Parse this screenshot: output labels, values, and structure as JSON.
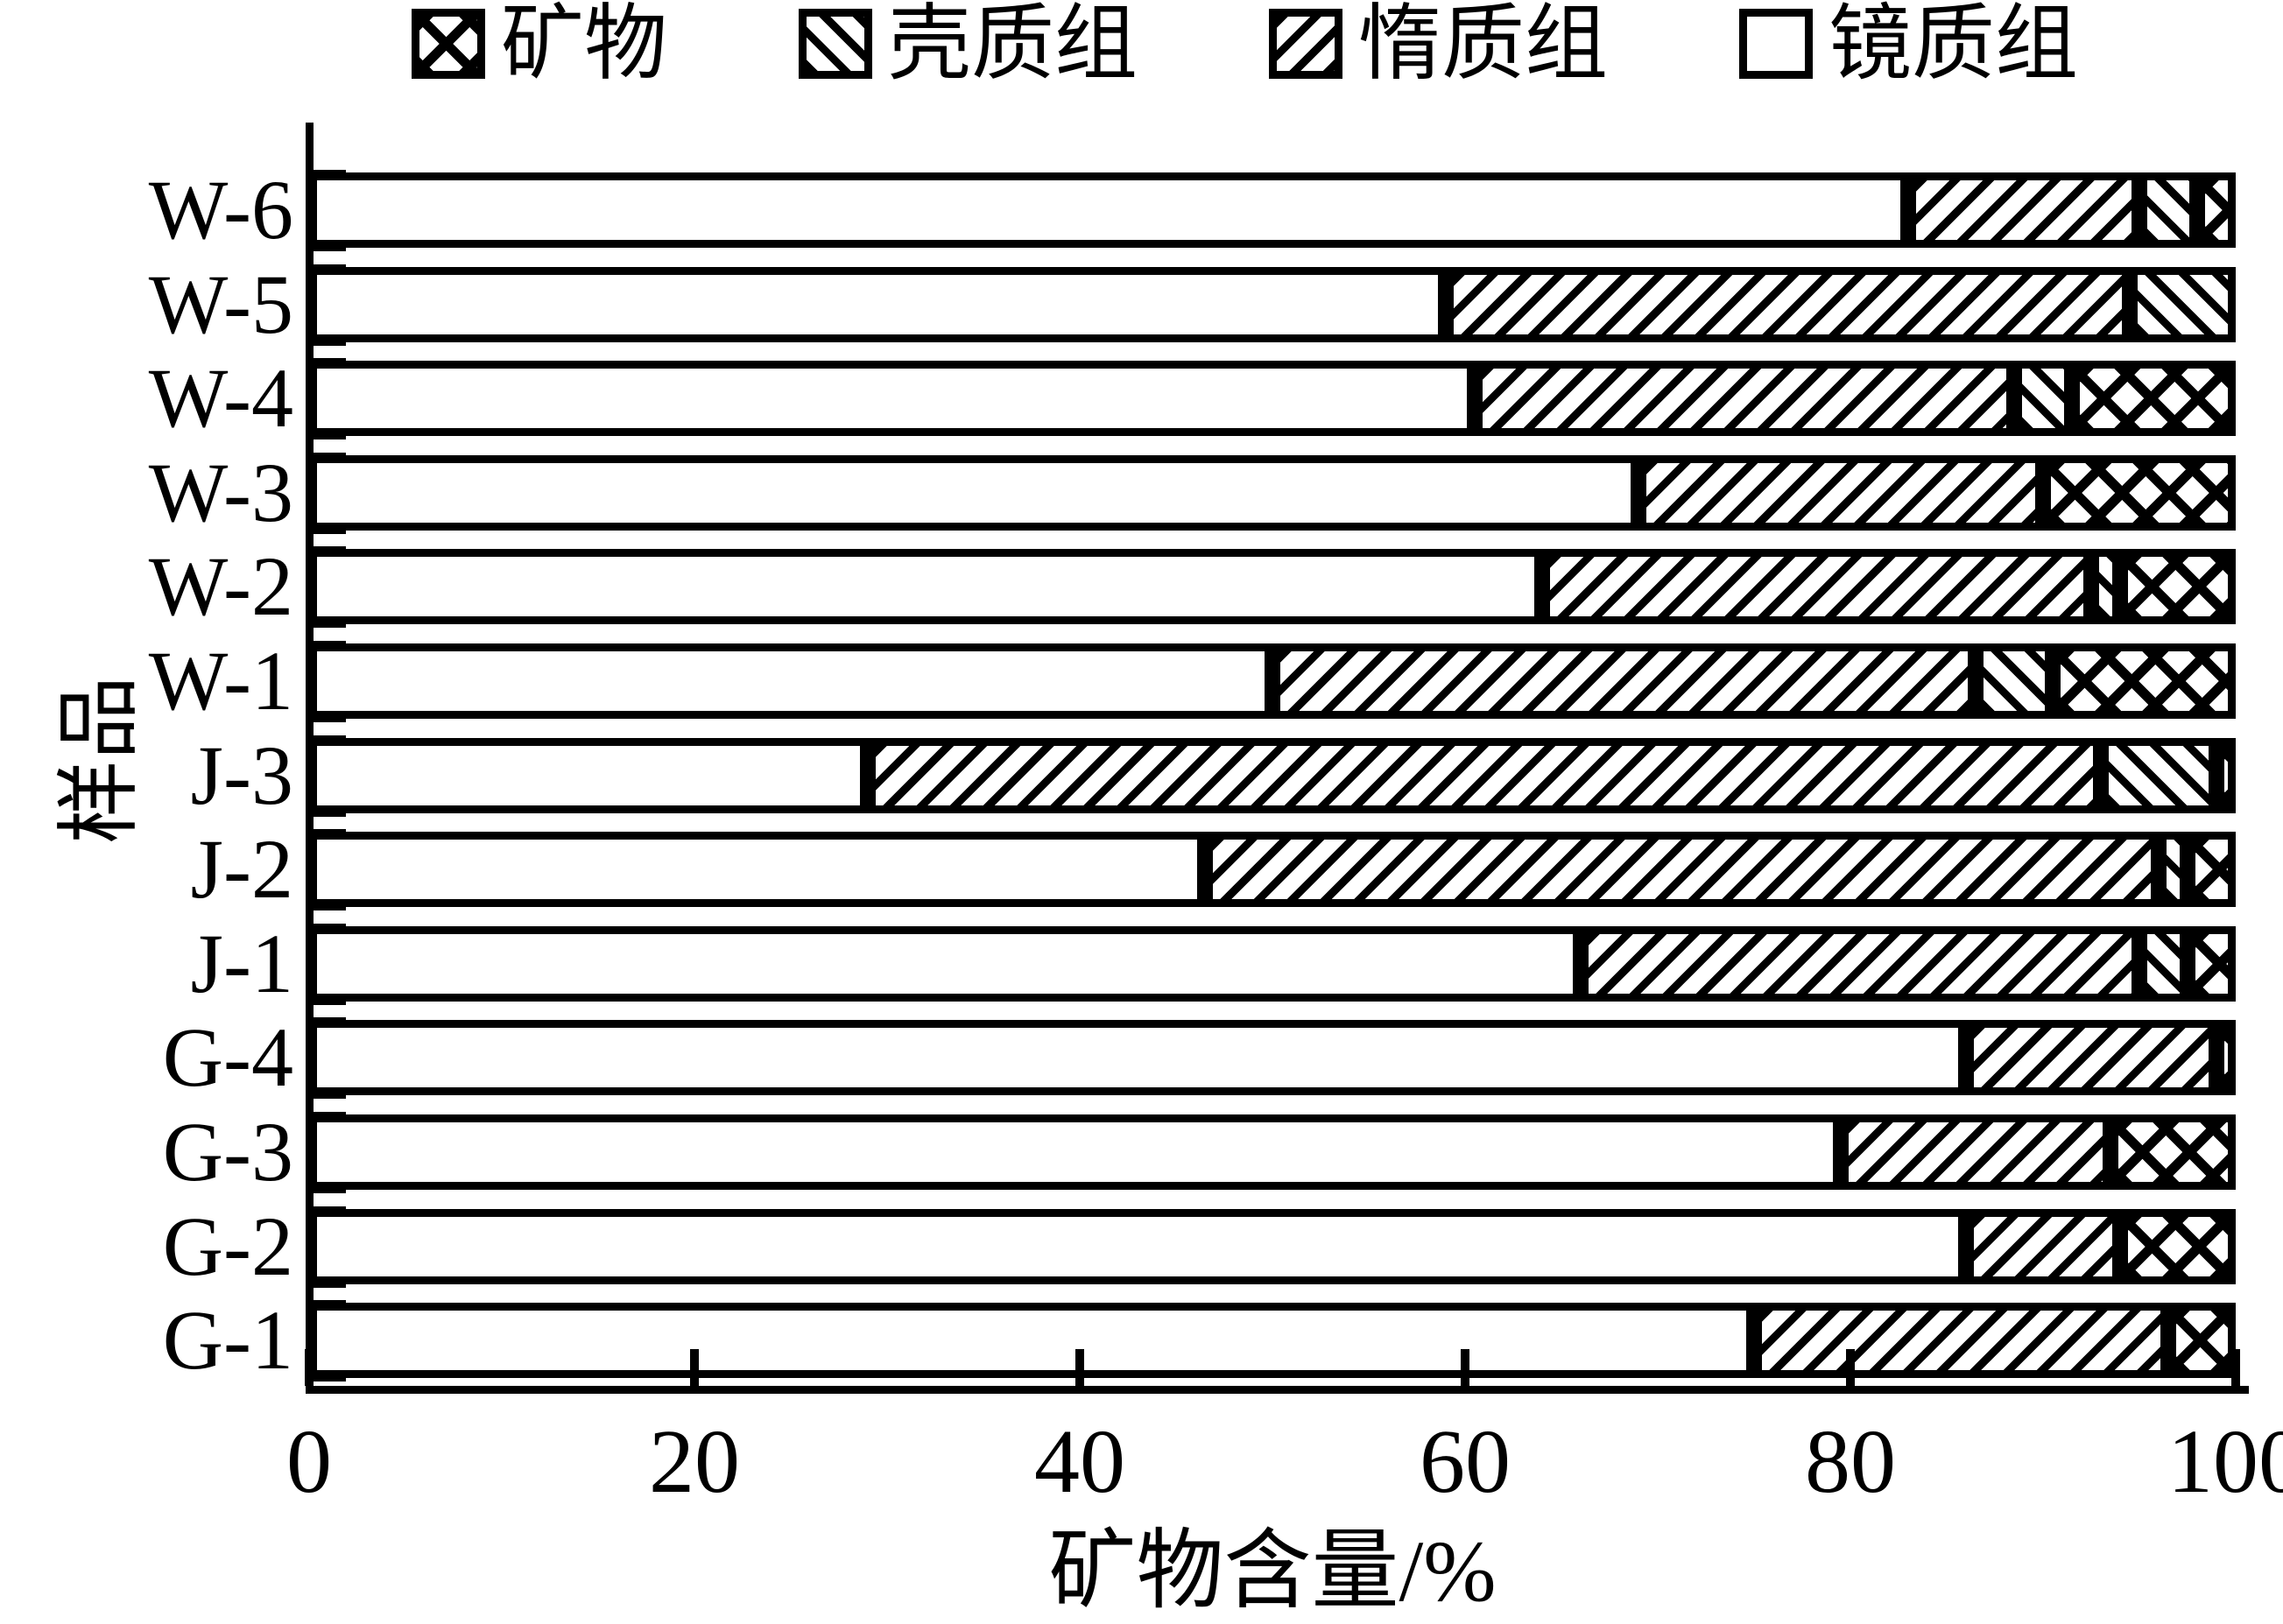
{
  "legend": {
    "items": [
      {
        "label": "矿物",
        "pattern": "cross-hatch-swatch"
      },
      {
        "label": "壳质组",
        "pattern": "backslash-hatch-swatch"
      },
      {
        "label": "惰质组",
        "pattern": "forwardslash-hatch-swatch"
      },
      {
        "label": "镜质组",
        "pattern": "empty-swatch"
      }
    ]
  },
  "chart_data": {
    "type": "bar",
    "subtype": "horizontal-stacked",
    "title": "",
    "xlabel": "矿物含量/%",
    "ylabel": "样品",
    "xlim": [
      0,
      100
    ],
    "x_ticks": [
      0,
      20,
      40,
      60,
      80,
      100
    ],
    "grid": false,
    "legend_position": "top",
    "legend_order": [
      "矿物",
      "壳质组",
      "惰质组",
      "镜质组"
    ],
    "categories": [
      "W-6",
      "W-5",
      "W-4",
      "W-3",
      "W-2",
      "W-1",
      "J-3",
      "J-2",
      "J-1",
      "G-4",
      "G-3",
      "G-2",
      "G-1"
    ],
    "series": [
      {
        "name": "镜质组",
        "pattern": "none",
        "values": [
          83,
          59,
          60.5,
          69,
          64,
          50,
          29,
          46.5,
          66,
          86,
          79.5,
          86,
          75
        ]
      },
      {
        "name": "惰质组",
        "pattern": "forward-slash",
        "values": [
          12,
          35.5,
          28,
          21,
          28.5,
          36.5,
          64,
          49.5,
          29,
          13,
          14,
          8,
          21.5
        ]
      },
      {
        "name": "壳质组",
        "pattern": "back-slash",
        "values": [
          3,
          5.5,
          3,
          0,
          1.5,
          4,
          6,
          1.5,
          2.5,
          0,
          0,
          0,
          0
        ]
      },
      {
        "name": "矿物",
        "pattern": "cross-hatch",
        "values": [
          2,
          0,
          8.5,
          10,
          6,
          9.5,
          1,
          2.5,
          2.5,
          1,
          6.5,
          6,
          3.5
        ]
      }
    ]
  }
}
